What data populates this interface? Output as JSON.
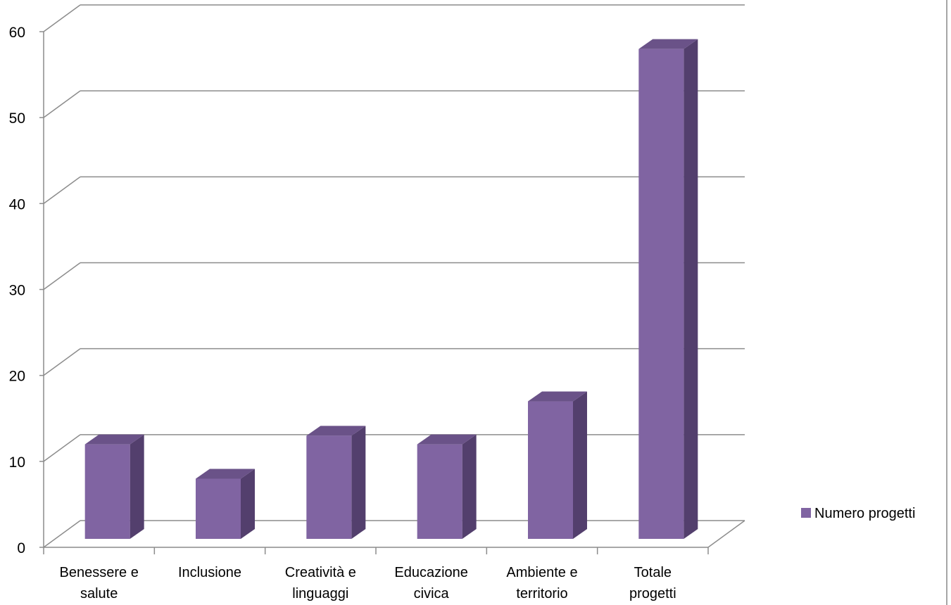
{
  "chart_data": {
    "type": "bar",
    "categories": [
      [
        "Benessere e",
        "salute"
      ],
      [
        "Inclusione"
      ],
      [
        "Creatività e",
        "linguaggi"
      ],
      [
        "Educazione",
        "civica"
      ],
      [
        "Ambiente e",
        "territorio"
      ],
      [
        "Totale",
        "progetti"
      ]
    ],
    "series": [
      {
        "name": "Numero progetti",
        "values": [
          11,
          7,
          12,
          11,
          16,
          57
        ]
      }
    ],
    "ylim": [
      0,
      60
    ],
    "yticks": [
      "0",
      "10",
      "20",
      "30",
      "40",
      "50",
      "60"
    ],
    "grid": true,
    "legend_position": "right",
    "three_d": true,
    "colors": {
      "bar_front": "#8064A2",
      "bar_side": "#533F6D",
      "bar_top": "#6A5288",
      "grid": "#8C8C8C",
      "axis": "#8C8C8C"
    }
  }
}
